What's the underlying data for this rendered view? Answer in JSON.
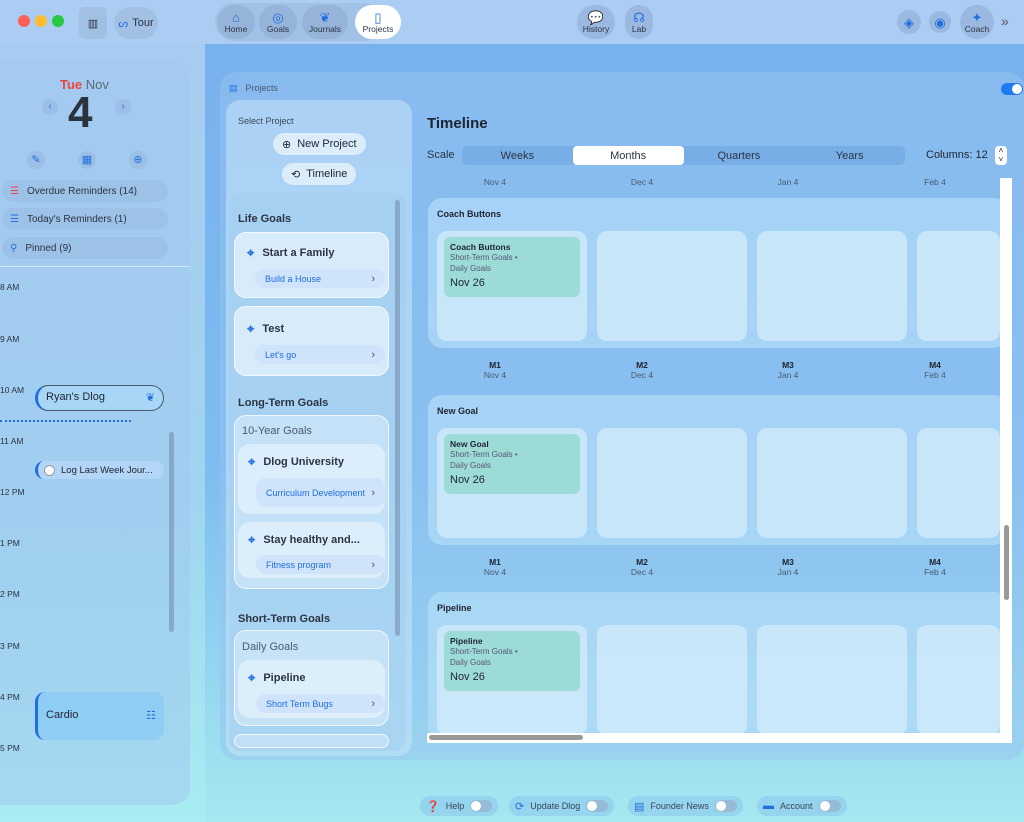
{
  "toolbar": {
    "tour": "Tour",
    "nav": [
      {
        "label": "Home",
        "icon": "house-icon"
      },
      {
        "label": "Goals",
        "icon": "target-icon"
      },
      {
        "label": "Journals",
        "icon": "leaf-icon"
      },
      {
        "label": "Projects",
        "icon": "clipboard-icon"
      }
    ],
    "history": "History",
    "lab": "Lab",
    "coach": "Coach"
  },
  "sidebar": {
    "day": "Tue",
    "month": "Nov",
    "date": "4",
    "reminders": [
      {
        "label": "Overdue Reminders (14)"
      },
      {
        "label": "Today's Reminders (1)"
      },
      {
        "label": "Pinned (9)"
      }
    ],
    "hours": [
      "8 AM",
      "9 AM",
      "10 AM",
      "11 AM",
      "12 PM",
      "1 PM",
      "2 PM",
      "3 PM",
      "4 PM",
      "5 PM"
    ],
    "events": {
      "dlog": "Ryan's Dlog",
      "log": "Log Last Week Jour...",
      "cardio": "Cardio"
    }
  },
  "projects": {
    "title": "Projects",
    "select": "Select Project",
    "new_project": "New Project",
    "timeline": "Timeline",
    "groups": {
      "life": "Life Goals",
      "long": "Long-Term Goals",
      "short": "Short-Term Goals"
    },
    "ten_year": "10-Year Goals",
    "daily": "Daily Goals",
    "goals": [
      {
        "title": "Start a Family",
        "sub": "Build a House"
      },
      {
        "title": "Test",
        "sub": "Let's go"
      },
      {
        "title": "Dlog University",
        "sub": "Curriculum Development"
      },
      {
        "title": "Stay healthy and...",
        "sub": "Fitness program"
      },
      {
        "title": "Pipeline",
        "sub": "Short Term Bugs"
      }
    ]
  },
  "timeline": {
    "title": "Timeline",
    "scale_label": "Scale",
    "scales": [
      "Weeks",
      "Months",
      "Quarters",
      "Years"
    ],
    "selected_scale": "Months",
    "columns": "Columns: 12",
    "months": [
      {
        "m": "M1",
        "d": "Nov 4"
      },
      {
        "m": "M2",
        "d": "Dec 4"
      },
      {
        "m": "M3",
        "d": "Jan 4"
      },
      {
        "m": "M4",
        "d": "Feb 4"
      }
    ],
    "rows": [
      {
        "name": "Coach Buttons",
        "event": {
          "title": "Coach Buttons",
          "meta1": "Short-Term Goals •",
          "meta2": "Daily Goals",
          "date": "Nov 26"
        }
      },
      {
        "name": "New Goal",
        "event": {
          "title": "New Goal",
          "meta1": "Short-Term Goals •",
          "meta2": "Daily Goals",
          "date": "Nov 26"
        }
      },
      {
        "name": "Pipeline",
        "event": {
          "title": "Pipeline",
          "meta1": "Short-Term Goals •",
          "meta2": "Daily Goals",
          "date": "Nov 26"
        }
      }
    ]
  },
  "bottom": [
    {
      "label": "Help"
    },
    {
      "label": "Update Dlog"
    },
    {
      "label": "Founder News"
    },
    {
      "label": "Account"
    }
  ]
}
